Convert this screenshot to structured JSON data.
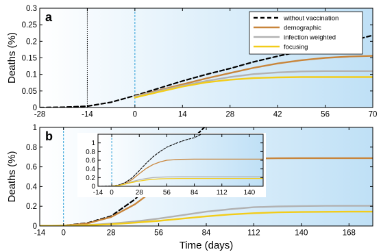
{
  "colors": {
    "without_vaccination": "#000000",
    "demographic": "#c8853b",
    "infection_weighted": "#b2b2b2",
    "focusing": "#f2cc1a",
    "vaccination_start_line": "#2a9fd8",
    "panel_bg_left": "#ffffff",
    "panel_bg_right": "#bfe0f6"
  },
  "chart_data": [
    {
      "type": "line",
      "panel_label": "a",
      "ylabel": "Deaths (%)",
      "xlabel": "",
      "xlim": [
        -28,
        70
      ],
      "ylim": [
        0,
        0.3
      ],
      "xticks": [
        -28,
        -14,
        0,
        14,
        28,
        42,
        56,
        70
      ],
      "yticks": [
        0,
        0.05,
        0.1,
        0.15,
        0.2,
        0.25,
        0.3
      ],
      "ytick_labels": [
        "0",
        "0.05",
        "0.1",
        "0.15",
        "0.2",
        "0.25",
        "0.3"
      ],
      "legend_position": "top-right",
      "vlines": [
        {
          "x": -14,
          "style": "dotted",
          "color": "#000000"
        },
        {
          "x": 0,
          "style": "dashed",
          "color": "#2a9fd8"
        }
      ],
      "series": [
        {
          "name": "without vaccination",
          "style": "dashed",
          "x": [
            -28,
            -21,
            -14,
            -7,
            0,
            7,
            14,
            21,
            28,
            35,
            42,
            49,
            56,
            63,
            70
          ],
          "y": [
            0.0,
            0.001,
            0.004,
            0.016,
            0.036,
            0.058,
            0.08,
            0.1,
            0.118,
            0.138,
            0.155,
            0.17,
            0.185,
            0.2,
            0.218
          ]
        },
        {
          "name": "demographic",
          "style": "solid",
          "x": [
            0,
            7,
            14,
            21,
            28,
            35,
            42,
            49,
            56,
            63,
            70
          ],
          "y": [
            0.034,
            0.052,
            0.07,
            0.088,
            0.104,
            0.12,
            0.133,
            0.143,
            0.15,
            0.154,
            0.156
          ]
        },
        {
          "name": "infection weighted",
          "style": "solid",
          "x": [
            0,
            7,
            14,
            21,
            28,
            35,
            42,
            49,
            56,
            63,
            70
          ],
          "y": [
            0.033,
            0.05,
            0.066,
            0.08,
            0.092,
            0.101,
            0.106,
            0.109,
            0.11,
            0.11,
            0.11
          ]
        },
        {
          "name": "focusing",
          "style": "solid",
          "x": [
            0,
            7,
            14,
            21,
            28,
            35,
            42,
            49,
            56,
            63,
            70
          ],
          "y": [
            0.03,
            0.047,
            0.063,
            0.076,
            0.084,
            0.089,
            0.091,
            0.092,
            0.092,
            0.092,
            0.092
          ]
        }
      ]
    },
    {
      "type": "line",
      "panel_label": "b",
      "ylabel": "Deaths (%)",
      "xlabel": "Time (days)",
      "xlim": [
        -14,
        182
      ],
      "ylim": [
        0,
        1
      ],
      "xticks": [
        -14,
        0,
        28,
        56,
        84,
        112,
        140,
        168
      ],
      "yticks": [
        0,
        0.2,
        0.4,
        0.6,
        0.8,
        1
      ],
      "ytick_labels": [
        "0",
        "0.2",
        "0.4",
        "0.6",
        "0.8",
        "1"
      ],
      "vlines": [
        {
          "x": 0,
          "style": "dashed",
          "color": "#2a9fd8"
        }
      ],
      "series": [
        {
          "name": "without vaccination",
          "style": "dashed",
          "x": [
            -14,
            0,
            14,
            28,
            42,
            56,
            70,
            84
          ],
          "y": [
            0.0,
            0.004,
            0.03,
            0.1,
            0.27,
            0.52,
            0.78,
            1.02
          ]
        },
        {
          "name": "demographic",
          "style": "solid",
          "x": [
            -14,
            0,
            14,
            28,
            42,
            56,
            70,
            84,
            98,
            112,
            126,
            140,
            154,
            168,
            182
          ],
          "y": [
            0.0,
            0.004,
            0.025,
            0.09,
            0.22,
            0.4,
            0.56,
            0.65,
            0.68,
            0.685,
            0.687,
            0.688,
            0.688,
            0.688,
            0.688
          ]
        },
        {
          "name": "infection weighted",
          "style": "solid",
          "x": [
            -14,
            0,
            14,
            28,
            42,
            56,
            70,
            84,
            98,
            112,
            126,
            140,
            154,
            168,
            182
          ],
          "y": [
            0.0,
            0.003,
            0.01,
            0.025,
            0.045,
            0.075,
            0.11,
            0.145,
            0.17,
            0.19,
            0.198,
            0.202,
            0.204,
            0.205,
            0.205
          ]
        },
        {
          "name": "focusing",
          "style": "solid",
          "x": [
            -14,
            0,
            14,
            28,
            42,
            56,
            70,
            84,
            98,
            112,
            126,
            140,
            154,
            168,
            182
          ],
          "y": [
            0.0,
            0.002,
            0.008,
            0.018,
            0.033,
            0.052,
            0.075,
            0.098,
            0.117,
            0.13,
            0.138,
            0.142,
            0.144,
            0.145,
            0.145
          ]
        }
      ]
    },
    {
      "type": "line",
      "panel_label": "",
      "inset_of": "b",
      "xlim": [
        -14,
        154
      ],
      "ylim": [
        0,
        1.2
      ],
      "xticks": [
        -14,
        0,
        28,
        56,
        84,
        112,
        140
      ],
      "yticks": [
        0,
        0.2,
        0.4,
        0.6,
        0.8,
        1
      ],
      "ytick_labels": [
        "0",
        "0.2",
        "0.4",
        "0.6",
        "0.8",
        "1"
      ],
      "vlines": [
        {
          "x": 0,
          "style": "dashed",
          "color": "#2a9fd8"
        }
      ],
      "series": [
        {
          "name": "without vaccination",
          "style": "dashed",
          "x": [
            -14,
            0,
            7,
            14,
            21,
            28,
            35,
            42,
            49,
            56,
            63,
            70,
            77,
            84,
            91
          ],
          "y": [
            0.0,
            0.005,
            0.03,
            0.09,
            0.2,
            0.36,
            0.53,
            0.68,
            0.8,
            0.9,
            0.97,
            1.03,
            1.08,
            1.12,
            1.2
          ]
        },
        {
          "name": "demographic",
          "style": "solid",
          "x": [
            0,
            7,
            14,
            21,
            28,
            35,
            42,
            49,
            56,
            70,
            84,
            112,
            140,
            154
          ],
          "y": [
            0.004,
            0.02,
            0.07,
            0.16,
            0.29,
            0.41,
            0.5,
            0.56,
            0.6,
            0.62,
            0.625,
            0.625,
            0.625,
            0.625
          ]
        },
        {
          "name": "infection weighted",
          "style": "solid",
          "x": [
            0,
            7,
            14,
            21,
            28,
            35,
            42,
            49,
            56,
            70,
            84,
            112,
            140,
            154
          ],
          "y": [
            0.003,
            0.02,
            0.06,
            0.11,
            0.15,
            0.18,
            0.2,
            0.21,
            0.215,
            0.22,
            0.22,
            0.22,
            0.22,
            0.22
          ]
        },
        {
          "name": "focusing",
          "style": "solid",
          "x": [
            0,
            7,
            14,
            21,
            28,
            35,
            42,
            49,
            56,
            70,
            84,
            112,
            140,
            154
          ],
          "y": [
            0.003,
            0.018,
            0.05,
            0.09,
            0.12,
            0.145,
            0.16,
            0.17,
            0.175,
            0.18,
            0.18,
            0.18,
            0.18,
            0.18
          ]
        }
      ]
    }
  ]
}
